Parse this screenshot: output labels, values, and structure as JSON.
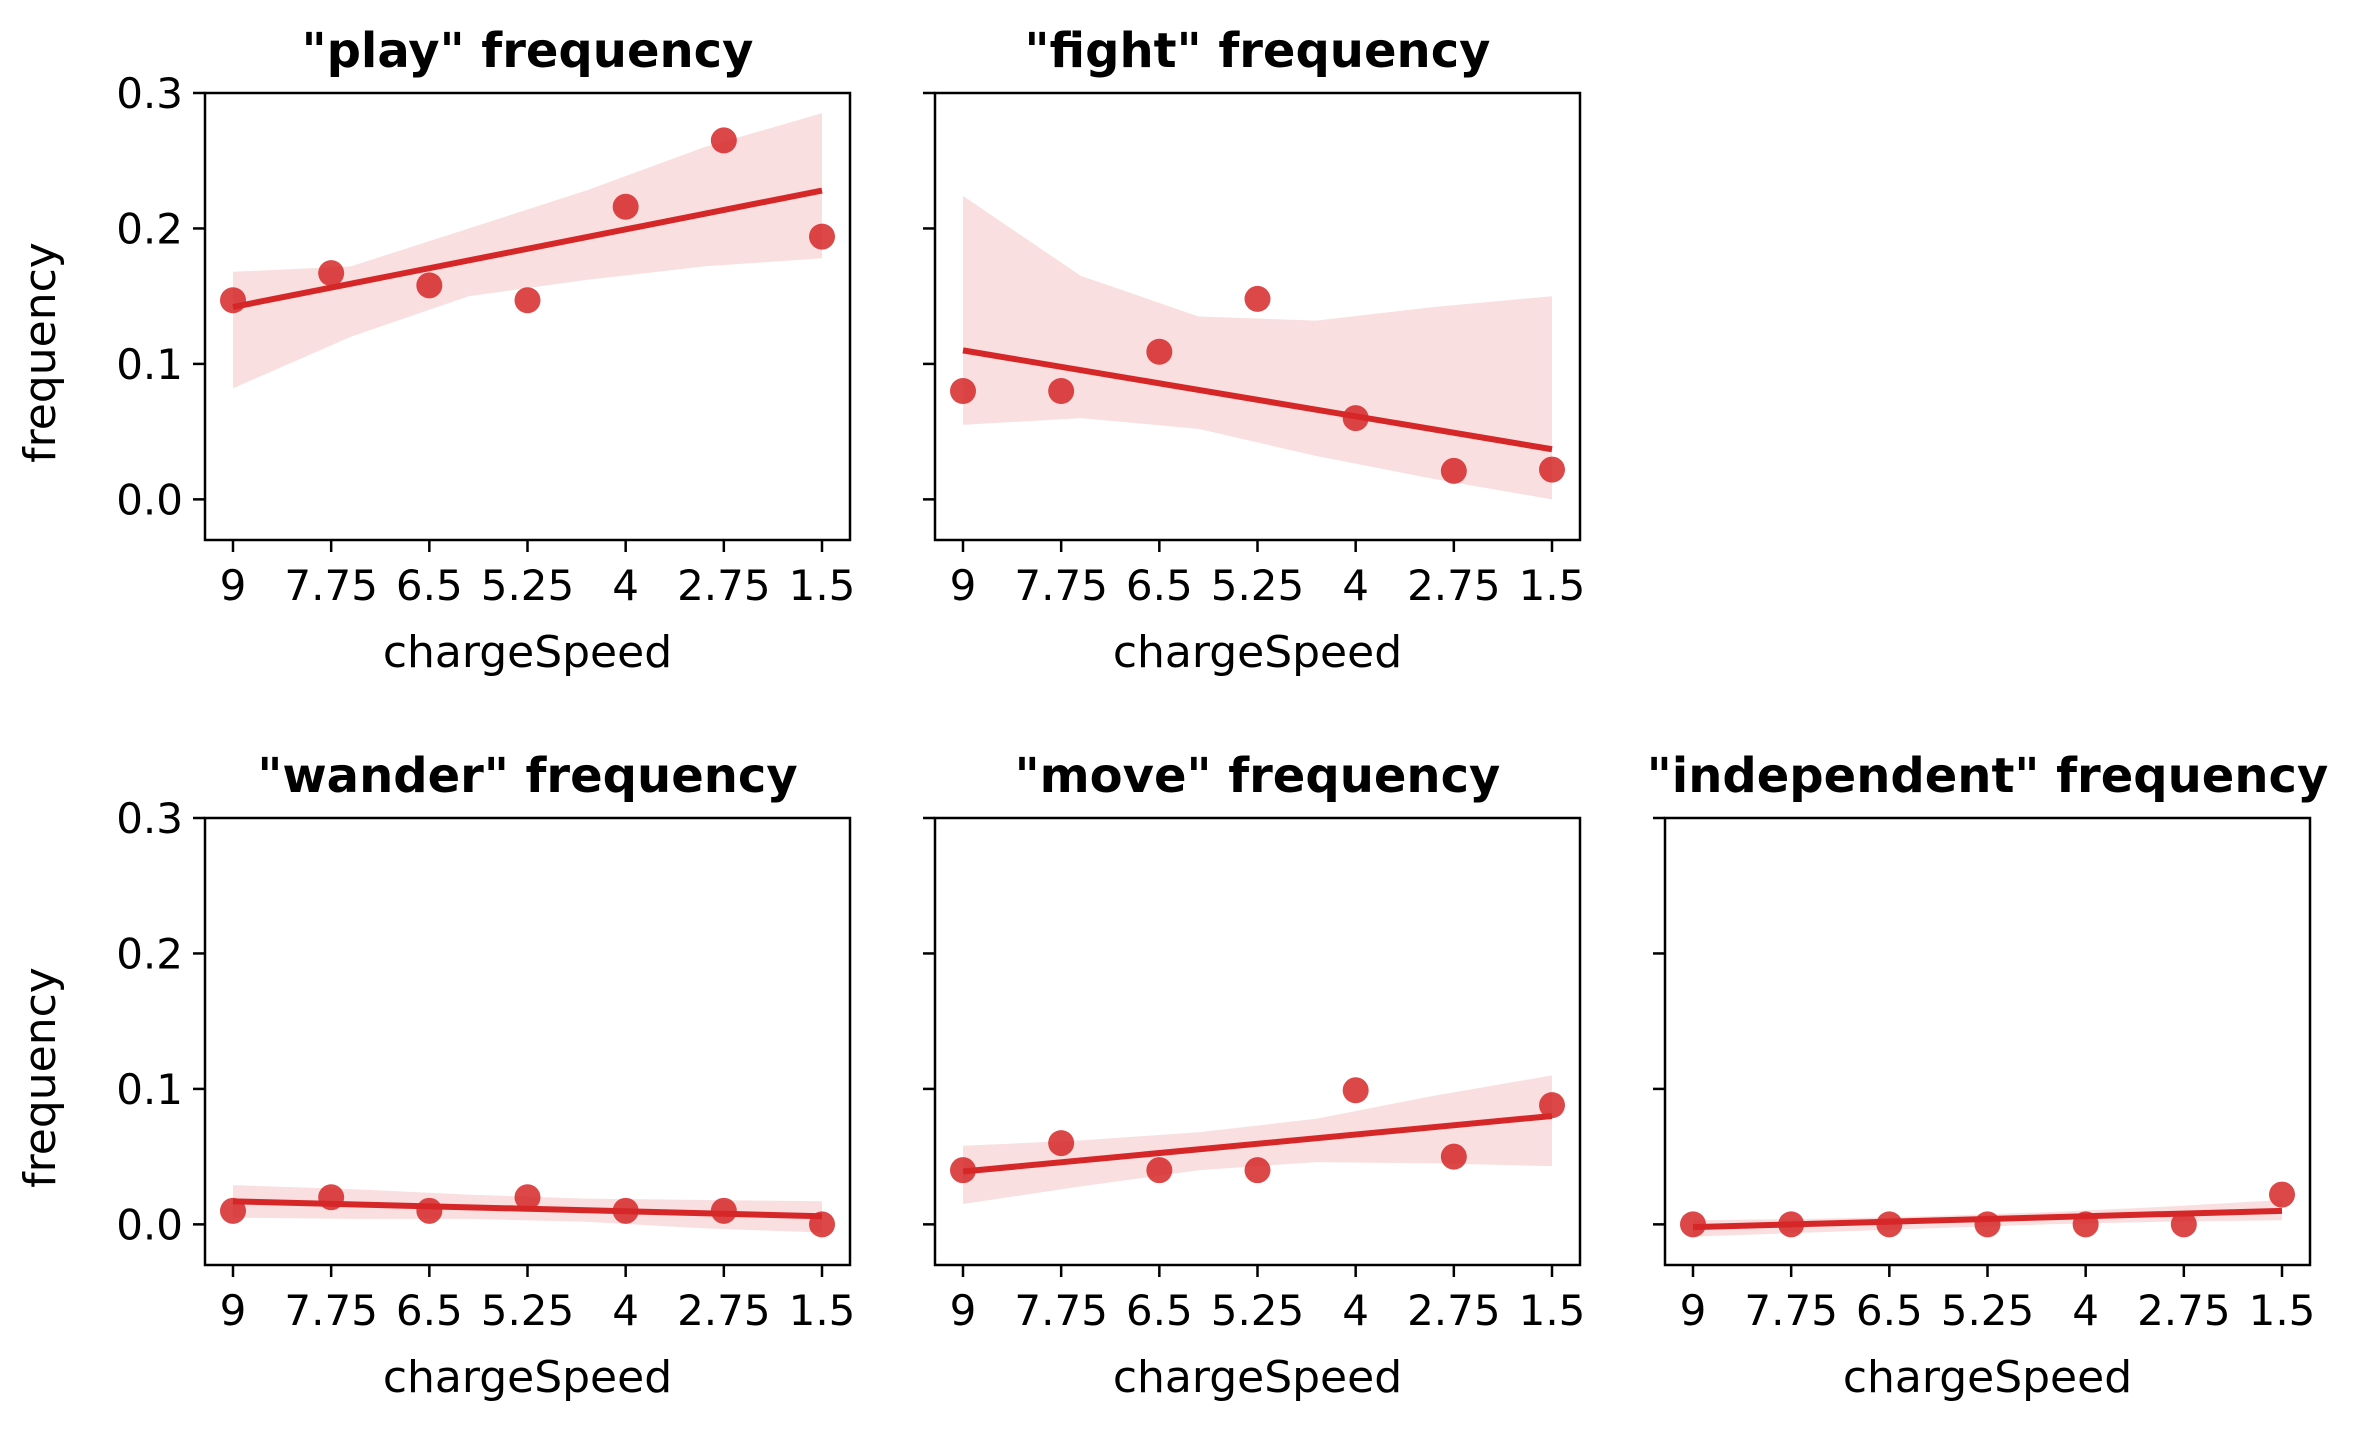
{
  "colors": {
    "accent": "#d62728",
    "band": "#d62728"
  },
  "chart_data": [
    {
      "type": "scatter",
      "title": "\"play\" frequency",
      "xlabel": "chargeSpeed",
      "ylabel": "frequency",
      "x_tick_labels": [
        "9",
        "7.75",
        "6.5",
        "5.25",
        "4",
        "2.75",
        "1.5"
      ],
      "y_tick_labels": [
        "0.0",
        "0.1",
        "0.2",
        "0.3"
      ],
      "ylim": [
        -0.03,
        0.3
      ],
      "grid": false,
      "series": [
        {
          "x": [
            9,
            7.75,
            6.5,
            5.25,
            4,
            2.75,
            1.5
          ],
          "y": [
            0.147,
            0.167,
            0.158,
            0.147,
            0.216,
            0.265,
            0.194
          ]
        }
      ],
      "fit": {
        "y_start": 0.142,
        "y_end": 0.228
      },
      "ci": {
        "upper": [
          0.168,
          0.172,
          0.2,
          0.228,
          0.26,
          0.285
        ],
        "lower": [
          0.082,
          0.12,
          0.15,
          0.162,
          0.172,
          0.178
        ]
      }
    },
    {
      "type": "scatter",
      "title": "\"fight\" frequency",
      "xlabel": "chargeSpeed",
      "ylabel": "",
      "x_tick_labels": [
        "9",
        "7.75",
        "6.5",
        "5.25",
        "4",
        "2.75",
        "1.5"
      ],
      "y_tick_labels": [],
      "ylim": [
        -0.03,
        0.3
      ],
      "grid": false,
      "series": [
        {
          "x": [
            9,
            7.75,
            6.5,
            5.25,
            4,
            2.75,
            1.5
          ],
          "y": [
            0.08,
            0.08,
            0.109,
            0.148,
            0.06,
            0.021,
            0.022
          ]
        }
      ],
      "fit": {
        "y_start": 0.11,
        "y_end": 0.037
      },
      "ci": {
        "upper": [
          0.224,
          0.165,
          0.135,
          0.132,
          0.142,
          0.15
        ],
        "lower": [
          0.055,
          0.06,
          0.052,
          0.032,
          0.015,
          0.0
        ]
      }
    },
    {
      "type": "scatter",
      "title": "\"wander\" frequency",
      "xlabel": "chargeSpeed",
      "ylabel": "frequency",
      "x_tick_labels": [
        "9",
        "7.75",
        "6.5",
        "5.25",
        "4",
        "2.75",
        "1.5"
      ],
      "y_tick_labels": [
        "0.0",
        "0.1",
        "0.2",
        "0.3"
      ],
      "ylim": [
        -0.03,
        0.3
      ],
      "grid": false,
      "series": [
        {
          "x": [
            9,
            7.75,
            6.5,
            5.25,
            4,
            2.75,
            1.5
          ],
          "y": [
            0.01,
            0.02,
            0.01,
            0.02,
            0.01,
            0.01,
            0.0
          ]
        }
      ],
      "fit": {
        "y_start": 0.017,
        "y_end": 0.006
      },
      "ci": {
        "upper": [
          0.029,
          0.026,
          0.022,
          0.019,
          0.018,
          0.017
        ],
        "lower": [
          0.005,
          0.004,
          0.004,
          0.002,
          -0.003,
          -0.006
        ]
      }
    },
    {
      "type": "scatter",
      "title": "\"move\" frequency",
      "xlabel": "chargeSpeed",
      "ylabel": "",
      "x_tick_labels": [
        "9",
        "7.75",
        "6.5",
        "5.25",
        "4",
        "2.75",
        "1.5"
      ],
      "y_tick_labels": [],
      "ylim": [
        -0.03,
        0.3
      ],
      "grid": false,
      "series": [
        {
          "x": [
            9,
            7.75,
            6.5,
            5.25,
            4,
            2.75,
            1.5
          ],
          "y": [
            0.04,
            0.06,
            0.04,
            0.04,
            0.099,
            0.05,
            0.088
          ]
        }
      ],
      "fit": {
        "y_start": 0.039,
        "y_end": 0.08
      },
      "ci": {
        "upper": [
          0.058,
          0.062,
          0.068,
          0.078,
          0.095,
          0.11
        ],
        "lower": [
          0.015,
          0.028,
          0.04,
          0.046,
          0.045,
          0.043
        ]
      }
    },
    {
      "type": "scatter",
      "title": "\"independent\" frequency",
      "xlabel": "chargeSpeed",
      "ylabel": "",
      "x_tick_labels": [
        "9",
        "7.75",
        "6.5",
        "5.25",
        "4",
        "2.75",
        "1.5"
      ],
      "y_tick_labels": [],
      "ylim": [
        -0.03,
        0.3
      ],
      "grid": false,
      "series": [
        {
          "x": [
            9,
            7.75,
            6.5,
            5.25,
            4,
            2.75,
            1.5
          ],
          "y": [
            0.0,
            0.0,
            0.0,
            0.0,
            0.0,
            0.0,
            0.022
          ]
        }
      ],
      "fit": {
        "y_start": -0.002,
        "y_end": 0.01
      },
      "ci": {
        "upper": [
          0.003,
          0.004,
          0.006,
          0.009,
          0.013,
          0.018
        ],
        "lower": [
          -0.009,
          -0.006,
          -0.003,
          0.0,
          0.002,
          0.003
        ]
      }
    }
  ]
}
